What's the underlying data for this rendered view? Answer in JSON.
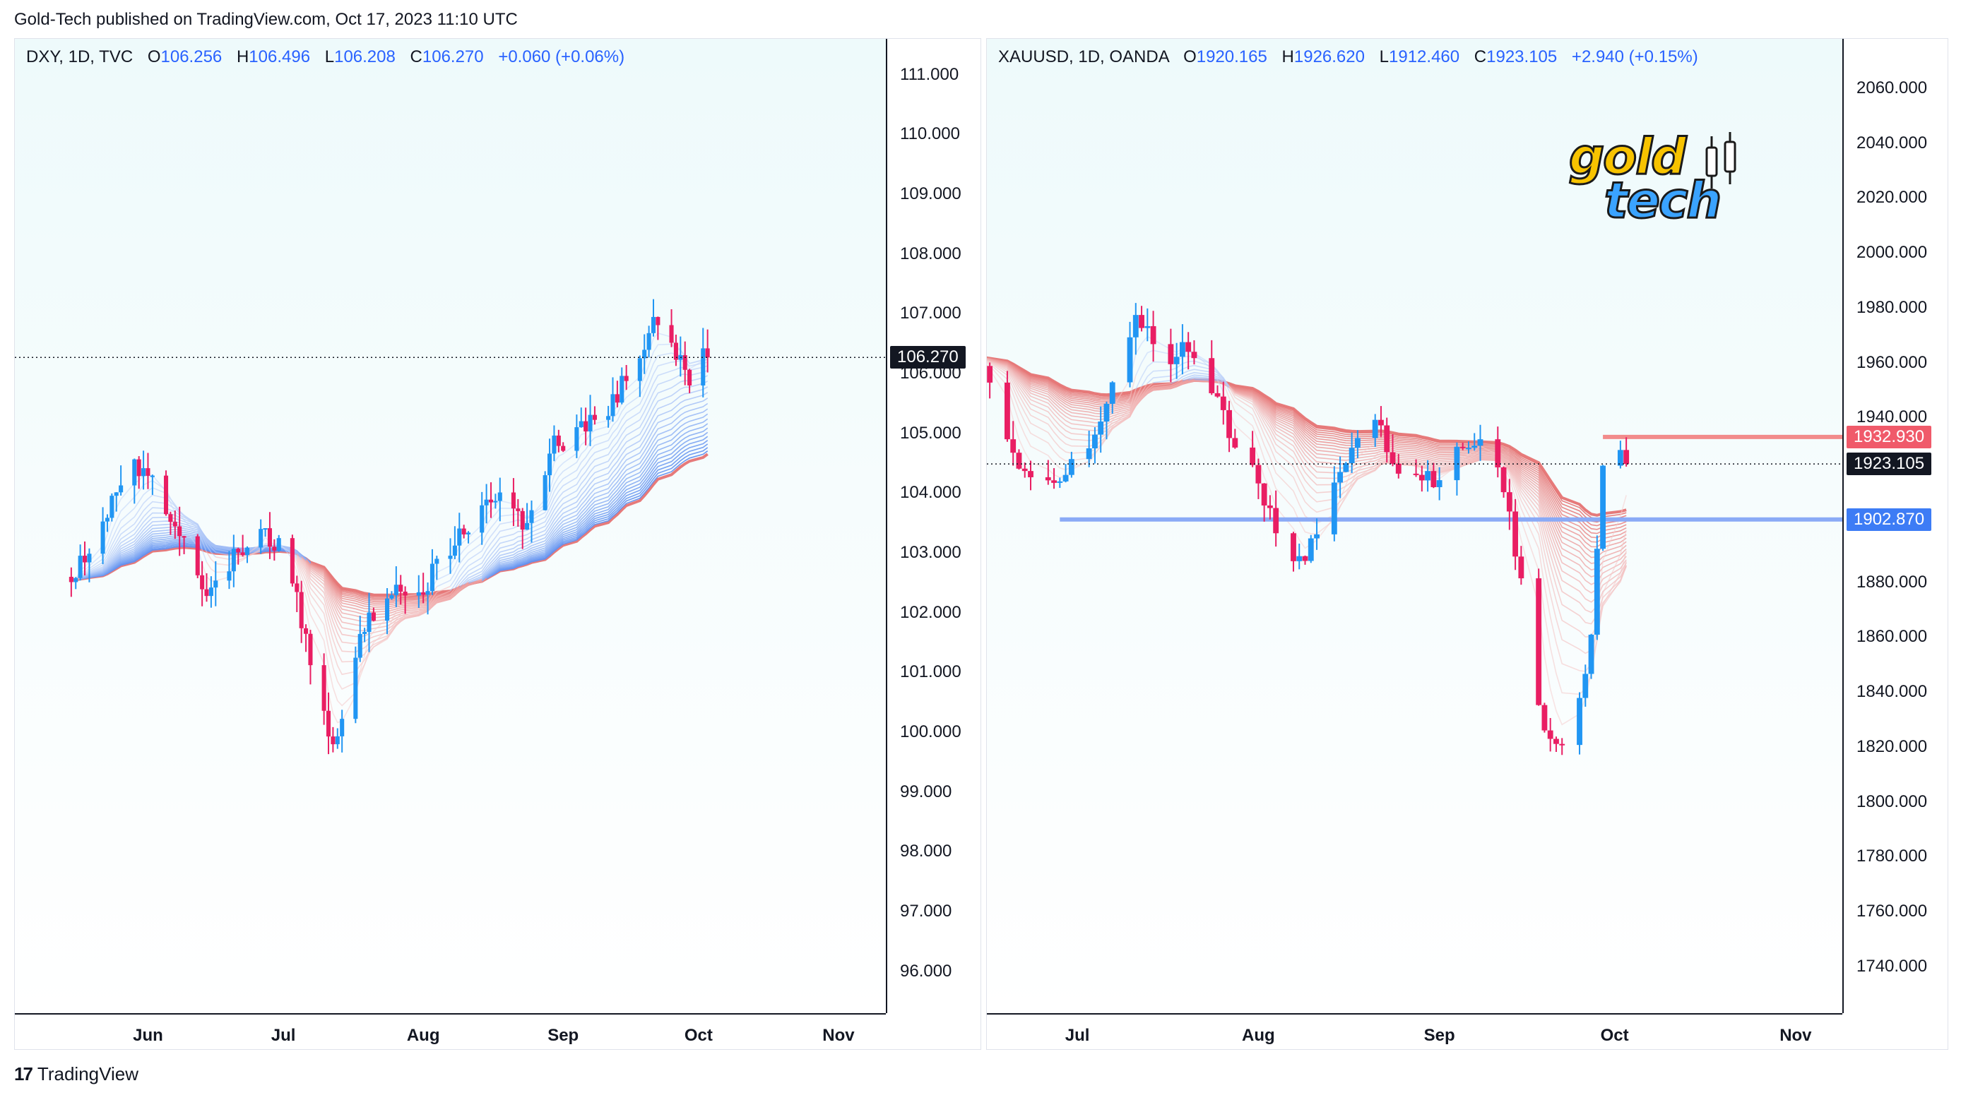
{
  "header": {
    "text": "Gold-Tech published on TradingView.com, Oct 17, 2023 11:10 UTC"
  },
  "footer": {
    "brand": "TradingView",
    "logo_glyph": "17"
  },
  "colors": {
    "up": "#2196f3",
    "down": "#e91e63",
    "ribbon_red": "#e57373",
    "ribbon_blue": "#5b8def",
    "bg_top": "#eefafb"
  },
  "chart_data": [
    {
      "type": "candlestick",
      "symbol": "DXY, 1D, TVC",
      "ohlc": {
        "O": "106.256",
        "H": "106.496",
        "L": "106.208",
        "C": "106.270",
        "chg": "+0.060 (+0.06%)"
      },
      "legend_keys": {
        "o": "O",
        "h": "H",
        "l": "L",
        "c": "C"
      },
      "ylim": [
        95.3,
        111.6
      ],
      "y_ticks": [
        "111.000",
        "110.000",
        "109.000",
        "108.000",
        "107.000",
        "106.000",
        "105.000",
        "104.000",
        "103.000",
        "102.000",
        "101.000",
        "100.000",
        "99.000",
        "98.000",
        "97.000",
        "96.000"
      ],
      "x_ticks": [
        "Jun",
        "Jul",
        "Aug",
        "Sep",
        "Oct",
        "Nov"
      ],
      "x_tick_days": [
        17,
        47,
        78,
        109,
        139,
        170
      ],
      "x_range": [
        -12.5,
        180.5
      ],
      "current_price": {
        "value": 106.27,
        "label": "106.270"
      },
      "anchors": [
        [
          0,
          102.6
        ],
        [
          3,
          102.9
        ],
        [
          7,
          103.5
        ],
        [
          10,
          104.0
        ],
        [
          14,
          104.4
        ],
        [
          17,
          104.3
        ],
        [
          20,
          103.9
        ],
        [
          23,
          103.5
        ],
        [
          26,
          103.0
        ],
        [
          28,
          102.6
        ],
        [
          30,
          102.2
        ],
        [
          33,
          102.5
        ],
        [
          36,
          102.9
        ],
        [
          39,
          103.2
        ],
        [
          42,
          103.3
        ],
        [
          44,
          103.2
        ],
        [
          46,
          103.1
        ],
        [
          48,
          102.8
        ],
        [
          50,
          102.2
        ],
        [
          52,
          101.6
        ],
        [
          54,
          100.8
        ],
        [
          56,
          100.2
        ],
        [
          58,
          99.9
        ],
        [
          60,
          100.3
        ],
        [
          62,
          100.9
        ],
        [
          64,
          101.5
        ],
        [
          66,
          101.9
        ],
        [
          68,
          102.0
        ],
        [
          70,
          102.3
        ],
        [
          72,
          102.6
        ],
        [
          74,
          102.4
        ],
        [
          76,
          102.1
        ],
        [
          78,
          102.3
        ],
        [
          80,
          102.7
        ],
        [
          83,
          103.0
        ],
        [
          86,
          103.3
        ],
        [
          89,
          103.6
        ],
        [
          92,
          103.9
        ],
        [
          95,
          104.0
        ],
        [
          98,
          103.7
        ],
        [
          100,
          103.4
        ],
        [
          102,
          103.8
        ],
        [
          104,
          104.3
        ],
        [
          107,
          104.8
        ],
        [
          110,
          104.9
        ],
        [
          113,
          105.1
        ],
        [
          116,
          105.2
        ],
        [
          119,
          105.4
        ],
        [
          122,
          105.8
        ],
        [
          125,
          106.1
        ],
        [
          128,
          106.8
        ],
        [
          130,
          106.9
        ],
        [
          132,
          106.6
        ],
        [
          135,
          106.2
        ],
        [
          137,
          105.9
        ],
        [
          139,
          106.4
        ],
        [
          141,
          106.27
        ]
      ],
      "volatility": 0.38,
      "ribbon_seed_price": 102.55,
      "ribbon_seed_day": 0,
      "levels": []
    },
    {
      "type": "candlestick",
      "symbol": "XAUUSD, 1D, OANDA",
      "ohlc": {
        "O": "1920.165",
        "H": "1926.620",
        "L": "1912.460",
        "C": "1923.105",
        "chg": "+2.940 (+0.15%)"
      },
      "legend_keys": {
        "o": "O",
        "h": "H",
        "l": "L",
        "c": "C"
      },
      "ylim": [
        1723,
        2078
      ],
      "y_ticks": [
        "2060.000",
        "2040.000",
        "2020.000",
        "2000.000",
        "1980.000",
        "1960.000",
        "1940.000",
        "1880.000",
        "1860.000",
        "1840.000",
        "1820.000",
        "1800.000",
        "1780.000",
        "1760.000",
        "1740.000"
      ],
      "x_ticks": [
        "Jul",
        "Aug",
        "Sep",
        "Oct",
        "Nov"
      ],
      "x_tick_days": [
        47,
        78,
        109,
        139,
        170
      ],
      "x_range": [
        31.5,
        178
      ],
      "current_price": {
        "value": 1923.105,
        "label": "1923.105"
      },
      "anchors": [
        [
          31,
          1958
        ],
        [
          33,
          1950
        ],
        [
          35,
          1935
        ],
        [
          37,
          1920
        ],
        [
          39,
          1915
        ],
        [
          41,
          1913
        ],
        [
          43,
          1918
        ],
        [
          45,
          1922
        ],
        [
          47,
          1925
        ],
        [
          49,
          1928
        ],
        [
          51,
          1938
        ],
        [
          53,
          1955
        ],
        [
          55,
          1965
        ],
        [
          57,
          1975
        ],
        [
          59,
          1972
        ],
        [
          61,
          1965
        ],
        [
          63,
          1958
        ],
        [
          65,
          1970
        ],
        [
          67,
          1960
        ],
        [
          69,
          1950
        ],
        [
          71,
          1945
        ],
        [
          73,
          1935
        ],
        [
          75,
          1928
        ],
        [
          77,
          1920
        ],
        [
          79,
          1910
        ],
        [
          81,
          1900
        ],
        [
          83,
          1893
        ],
        [
          85,
          1887
        ],
        [
          87,
          1893
        ],
        [
          89,
          1905
        ],
        [
          91,
          1915
        ],
        [
          93,
          1925
        ],
        [
          95,
          1935
        ],
        [
          97,
          1942
        ],
        [
          99,
          1935
        ],
        [
          101,
          1925
        ],
        [
          103,
          1918
        ],
        [
          105,
          1920
        ],
        [
          107,
          1918
        ],
        [
          109,
          1915
        ],
        [
          111,
          1922
        ],
        [
          113,
          1930
        ],
        [
          115,
          1932
        ],
        [
          117,
          1928
        ],
        [
          119,
          1920
        ],
        [
          121,
          1905
        ],
        [
          123,
          1880
        ],
        [
          125,
          1850
        ],
        [
          127,
          1825
        ],
        [
          129,
          1818
        ],
        [
          131,
          1820
        ],
        [
          133,
          1835
        ],
        [
          135,
          1862
        ],
        [
          137,
          1925
        ],
        [
          139,
          1932
        ],
        [
          141,
          1923
        ]
      ],
      "volatility": 7.5,
      "ribbon_seed_price": 1962,
      "ribbon_seed_day": 31,
      "levels": [
        {
          "value": 1932.93,
          "label": "1932.930",
          "color": "#f28b8b",
          "label_bg": "#f05a6a",
          "from_day": 137
        },
        {
          "value": 1902.87,
          "label": "1902.870",
          "color": "#8aaaf6",
          "label_bg": "#3d7cf5",
          "from_day": 44
        }
      ]
    }
  ],
  "logo": {
    "line1": "gold",
    "line2": "tech"
  }
}
